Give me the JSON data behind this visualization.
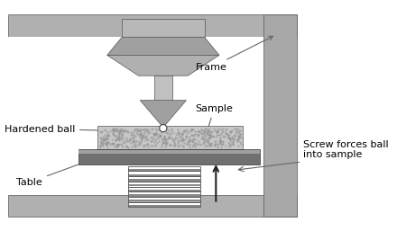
{
  "bg_color": "#ffffff",
  "frame_fill": "#b0b0b0",
  "frame_edge": "#555555",
  "indenter_fill": "#a8a8a8",
  "shaft_fill": "#c0c0c0",
  "sample_fill": "#c8c8c8",
  "table_fill": "#888888",
  "table_dark": "#666666",
  "spring_dark": "#555555",
  "spring_light": "#cccccc",
  "labels": {
    "hardened_ball": "Hardened ball",
    "frame": "Frame",
    "sample": "Sample",
    "table": "Table",
    "screw": "Screw forces ball\ninto sample"
  },
  "figsize": [
    4.4,
    2.57
  ],
  "dpi": 100
}
